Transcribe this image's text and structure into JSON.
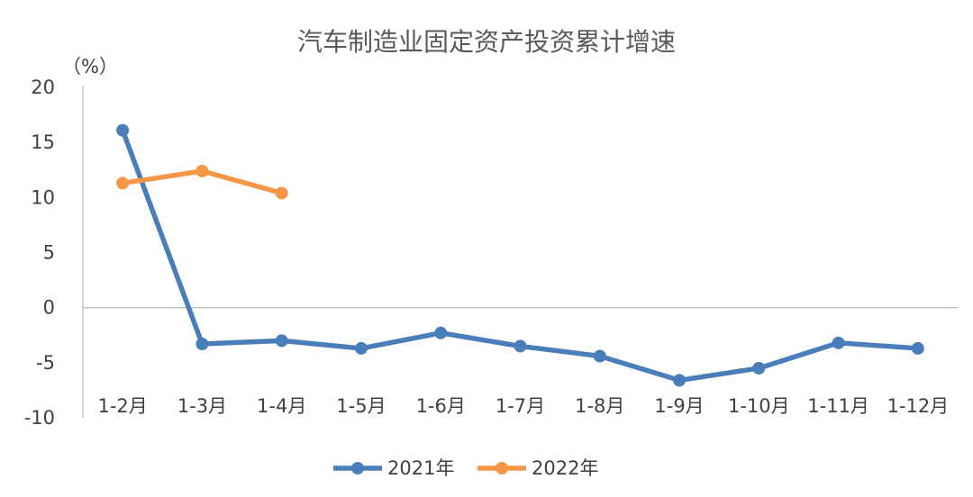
{
  "chart_data": {
    "type": "line",
    "title": "汽车制造业固定资产投资累计增速",
    "ylabel": "（%）",
    "categories": [
      "1-2月",
      "1-3月",
      "1-4月",
      "1-5月",
      "1-6月",
      "1-7月",
      "1-8月",
      "1-9月",
      "1-10月",
      "1-11月",
      "1-12月"
    ],
    "ylim": [
      -10,
      20
    ],
    "yticks": [
      20,
      15,
      10,
      5,
      0,
      -5,
      -10
    ],
    "grid": false,
    "legend_position": "bottom",
    "series": [
      {
        "name": "2021年",
        "color": "#4a7ebb",
        "values": [
          16.1,
          -3.3,
          -3.0,
          -3.7,
          -2.3,
          -3.5,
          -4.4,
          -6.6,
          -5.5,
          -3.2,
          -3.7
        ]
      },
      {
        "name": "2022年",
        "color": "#f79646",
        "values": [
          11.3,
          12.4,
          10.4,
          null,
          null,
          null,
          null,
          null,
          null,
          null,
          null
        ]
      }
    ]
  }
}
